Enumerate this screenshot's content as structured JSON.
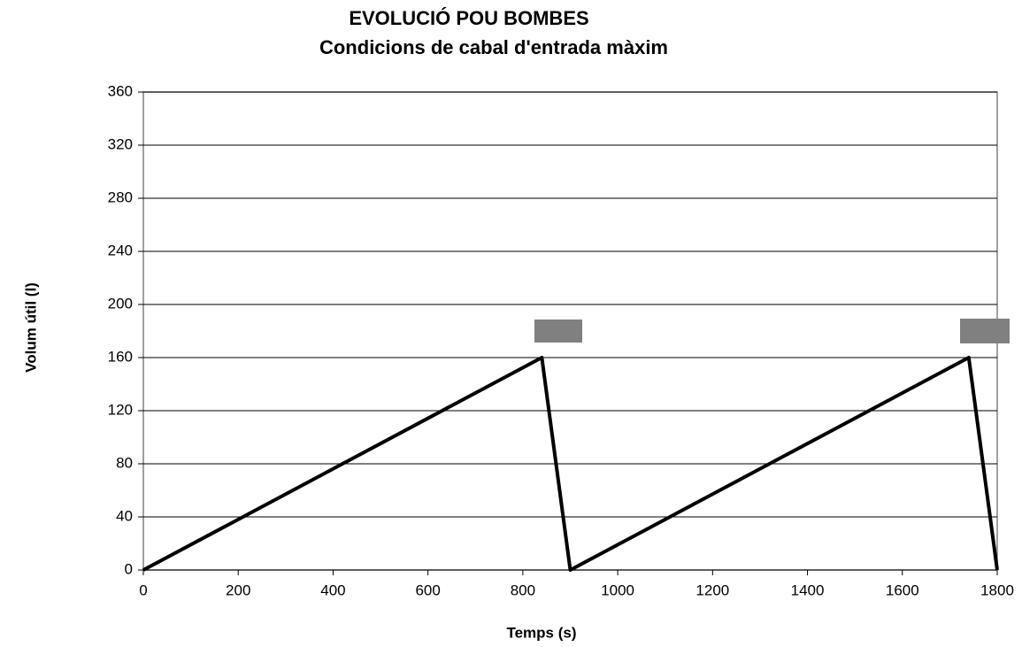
{
  "chart_data": {
    "type": "line",
    "title": "EVOLUCIÓ  POU BOMBES",
    "subtitle": "Condicions de cabal d'entrada màxim",
    "x_label": "Temps  (s)",
    "y_label": "Volum útil (l)",
    "x": [
      0,
      840,
      900,
      1740,
      1800
    ],
    "values": [
      0,
      160,
      0,
      160,
      0
    ],
    "color": "#000000",
    "xlim": [
      0,
      1800
    ],
    "xticks": [
      0,
      200,
      400,
      600,
      800,
      1000,
      1200,
      1400,
      1600,
      1800
    ],
    "ylim": [
      0,
      360
    ],
    "yticks": [
      0,
      40,
      80,
      120,
      160,
      200,
      240,
      280,
      320,
      360
    ],
    "grid": true
  }
}
